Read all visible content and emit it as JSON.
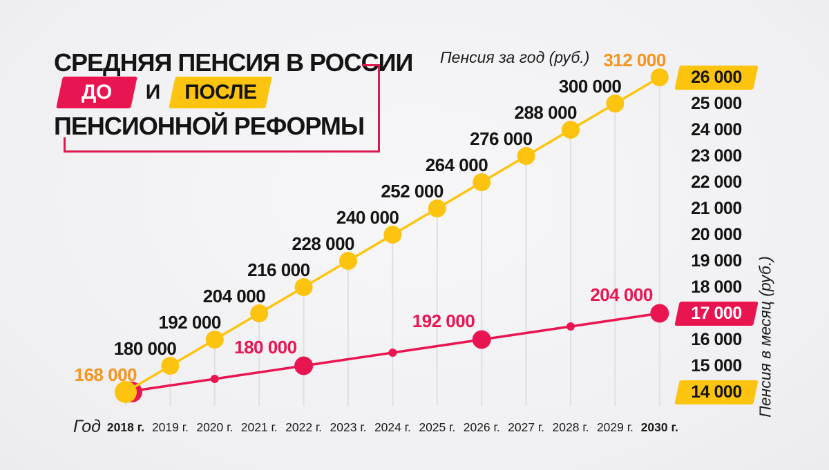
{
  "header": {
    "line1": "СРЕДНЯЯ ПЕНСИЯ В РОССИИ",
    "before_label": "ДО",
    "conjunction": "И",
    "after_label": "ПОСЛЕ",
    "line3": "ПЕНСИОННОЙ РЕФОРМЫ"
  },
  "axis_labels": {
    "top": "Пенсия за год (руб.)",
    "right": "Пенсия в месяц (руб.)",
    "x": "Год"
  },
  "colors": {
    "yellow": "#FCC40E",
    "orange_label": "#F5941E",
    "red": "#E91550",
    "text": "#141414",
    "white": "#FFFFFF",
    "grid": "#DFDFE4"
  },
  "chart_data": {
    "type": "line",
    "title": "Средняя пенсия в России до и после пенсионной реформы",
    "x_axis_label": "Год",
    "top_axis_label": "Пенсия за год (руб.)",
    "right_axis_label": "Пенсия в месяц (руб.)",
    "x_years": [
      2018,
      2019,
      2020,
      2021,
      2022,
      2023,
      2024,
      2025,
      2026,
      2027,
      2028,
      2029,
      2030
    ],
    "x_tick_labels": [
      "2018 г.",
      "2019 г.",
      "2020 г.",
      "2021 г.",
      "2022 г.",
      "2023 г.",
      "2024 г.",
      "2025 г.",
      "2026 г.",
      "2027 г.",
      "2028 г.",
      "2029 г.",
      "2030 г."
    ],
    "x_ticks_bold_years": [
      2018,
      2030
    ],
    "ylim_monthly": [
      14000,
      26000
    ],
    "grid": "vertical-per-year",
    "right_axis_ticks": [
      {
        "label": "26 000",
        "badge": "yellow"
      },
      {
        "label": "25 000",
        "badge": null
      },
      {
        "label": "24 000",
        "badge": null
      },
      {
        "label": "23 000",
        "badge": null
      },
      {
        "label": "22 000",
        "badge": null
      },
      {
        "label": "21 000",
        "badge": null
      },
      {
        "label": "20 000",
        "badge": null
      },
      {
        "label": "19 000",
        "badge": null
      },
      {
        "label": "18 000",
        "badge": null
      },
      {
        "label": "17 000",
        "badge": "red"
      },
      {
        "label": "16 000",
        "badge": null
      },
      {
        "label": "15 000",
        "badge": null
      },
      {
        "label": "14 000",
        "badge": "yellow"
      }
    ],
    "series": [
      {
        "name": "после реформы",
        "color_key": "yellow",
        "monthly_rub": [
          14000,
          15000,
          16000,
          17000,
          18000,
          19000,
          20000,
          21000,
          22000,
          23000,
          24000,
          25000,
          26000
        ],
        "yearly_rub": [
          168000,
          180000,
          192000,
          204000,
          216000,
          228000,
          240000,
          252000,
          264000,
          276000,
          288000,
          300000,
          312000
        ],
        "markers_big_years": [
          2018,
          2019,
          2020,
          2021,
          2022,
          2023,
          2024,
          2025,
          2026,
          2027,
          2028,
          2029,
          2030
        ],
        "markers_small_years": [],
        "point_labels": [
          {
            "year": 2018,
            "text": "168 000",
            "highlight": true
          },
          {
            "year": 2019,
            "text": "180 000",
            "highlight": false
          },
          {
            "year": 2020,
            "text": "192 000",
            "highlight": false
          },
          {
            "year": 2021,
            "text": "204 000",
            "highlight": false
          },
          {
            "year": 2022,
            "text": "216 000",
            "highlight": false
          },
          {
            "year": 2023,
            "text": "228 000",
            "highlight": false
          },
          {
            "year": 2024,
            "text": "240 000",
            "highlight": false
          },
          {
            "year": 2025,
            "text": "252 000",
            "highlight": false
          },
          {
            "year": 2026,
            "text": "264 000",
            "highlight": false
          },
          {
            "year": 2027,
            "text": "276 000",
            "highlight": false
          },
          {
            "year": 2028,
            "text": "288 000",
            "highlight": false
          },
          {
            "year": 2029,
            "text": "300 000",
            "highlight": false
          },
          {
            "year": 2030,
            "text": "312 000",
            "highlight": true
          }
        ]
      },
      {
        "name": "до реформы",
        "color_key": "red",
        "monthly_rub": [
          14000,
          14250,
          14500,
          14750,
          15000,
          15250,
          15500,
          15750,
          16000,
          16250,
          16500,
          16750,
          17000
        ],
        "yearly_rub": [
          168000,
          171000,
          174000,
          177000,
          180000,
          183000,
          186000,
          189000,
          192000,
          195000,
          198000,
          201000,
          204000
        ],
        "markers_big_years": [
          2018,
          2022,
          2026,
          2030
        ],
        "markers_small_years": [
          2020,
          2024,
          2028
        ],
        "point_labels": [
          {
            "year": 2022,
            "text": "180 000",
            "highlight": false
          },
          {
            "year": 2026,
            "text": "192 000",
            "highlight": false
          },
          {
            "year": 2030,
            "text": "204 000",
            "highlight": false
          }
        ]
      }
    ]
  }
}
